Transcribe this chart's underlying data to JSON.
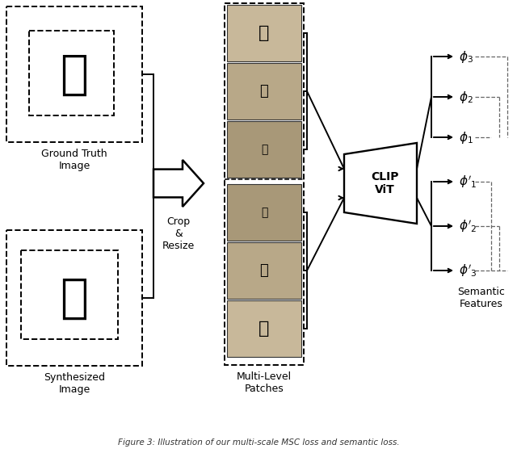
{
  "bg_color": "#ffffff",
  "fig_width": 6.4,
  "fig_height": 5.61,
  "gt_label": "Ground Truth\nImage",
  "syn_label": "Synthesized\nImage",
  "crop_label": "Crop\n&\nResize",
  "patches_label": "Multi-Level\nPatches",
  "clip_label": "CLIP\nViT",
  "semantic_label": "Semantic\nFeatures",
  "patch_colors_top": [
    "#c8b89a",
    "#b8a888",
    "#a89878"
  ],
  "patch_colors_bot": [
    "#a89878",
    "#b8a888",
    "#c8b89a"
  ]
}
